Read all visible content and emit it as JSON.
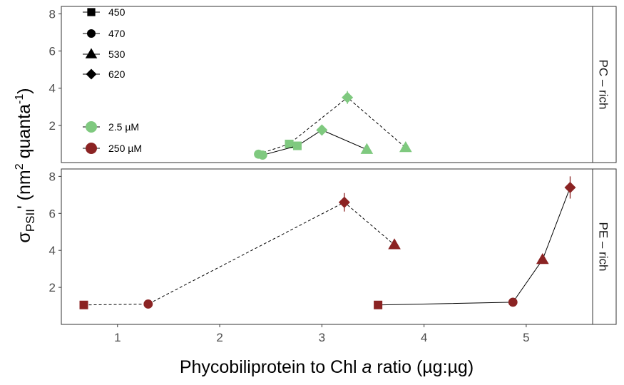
{
  "chart_data": {
    "type": "scatter",
    "xlabel_main": "Phycobiliprotein to Chl ",
    "xlabel_italic": "a",
    "xlabel_tail": " ratio (µg:µg)",
    "ylabel": {
      "sigma": "σ",
      "sub": "PSII",
      "after_sub": "' (nm",
      "sup1": "2",
      "mid": " quanta",
      "sup2": "-1",
      "end": ")"
    },
    "xlim": [
      0.45,
      5.65
    ],
    "x_ticks": [
      1,
      2,
      3,
      4,
      5
    ],
    "x_tick_labels": [
      "1",
      "2",
      "3",
      "4",
      "5"
    ],
    "grid": false,
    "legend_shapes": [
      {
        "shape": "square",
        "label": "450"
      },
      {
        "shape": "circle",
        "label": "470"
      },
      {
        "shape": "triangle",
        "label": "530"
      },
      {
        "shape": "diamond",
        "label": "620"
      }
    ],
    "legend_colors": [
      {
        "color": "#7fc97f",
        "label": "2.5 µM"
      },
      {
        "color": "#8b2323",
        "label": "250 µM"
      }
    ],
    "colors": {
      "low": "#7fc97f",
      "high": "#8b2323"
    },
    "panels": [
      {
        "strip": "PC – rich",
        "ylim": [
          0,
          8.4
        ],
        "y_ticks": [
          2,
          4,
          6,
          8
        ],
        "y_tick_labels": [
          "2",
          "4",
          "6",
          "8"
        ],
        "series": [
          {
            "color_key": "low",
            "line": "dashed",
            "points": [
              {
                "shape": "circle",
                "x": 2.38,
                "y": 0.45,
                "err": 0.05
              },
              {
                "shape": "square",
                "x": 2.68,
                "y": 1.0,
                "err": 0.05
              },
              {
                "shape": "diamond",
                "x": 3.25,
                "y": 3.5,
                "err": 0.35
              },
              {
                "shape": "triangle",
                "x": 3.82,
                "y": 0.8,
                "err": 0.05
              }
            ]
          },
          {
            "color_key": "low",
            "line": "solid",
            "points": [
              {
                "shape": "circle",
                "x": 2.42,
                "y": 0.4,
                "err": 0.05
              },
              {
                "shape": "square",
                "x": 2.76,
                "y": 0.9,
                "err": 0.05
              },
              {
                "shape": "diamond",
                "x": 3.0,
                "y": 1.75,
                "err": 0.1
              },
              {
                "shape": "triangle",
                "x": 3.44,
                "y": 0.7,
                "err": 0.05
              }
            ]
          }
        ]
      },
      {
        "strip": "PE – rich",
        "ylim": [
          0,
          8.4
        ],
        "y_ticks": [
          2,
          4,
          6,
          8
        ],
        "y_tick_labels": [
          "2",
          "4",
          "6",
          "8"
        ],
        "series": [
          {
            "color_key": "high",
            "line": "dashed",
            "points": [
              {
                "shape": "square",
                "x": 0.67,
                "y": 1.05,
                "err": 0.05
              },
              {
                "shape": "circle",
                "x": 1.3,
                "y": 1.1,
                "err": 0.05
              },
              {
                "shape": "diamond",
                "x": 3.22,
                "y": 6.6,
                "err": 0.5
              },
              {
                "shape": "triangle",
                "x": 3.71,
                "y": 4.3,
                "err": 0.05
              }
            ]
          },
          {
            "color_key": "high",
            "line": "solid",
            "points": [
              {
                "shape": "square",
                "x": 3.55,
                "y": 1.05,
                "err": 0.05
              },
              {
                "shape": "circle",
                "x": 4.87,
                "y": 1.2,
                "err": 0.05
              },
              {
                "shape": "triangle",
                "x": 5.16,
                "y": 3.5,
                "err": 0.05
              },
              {
                "shape": "diamond",
                "x": 5.43,
                "y": 7.4,
                "err": 0.6
              }
            ]
          }
        ]
      }
    ]
  }
}
